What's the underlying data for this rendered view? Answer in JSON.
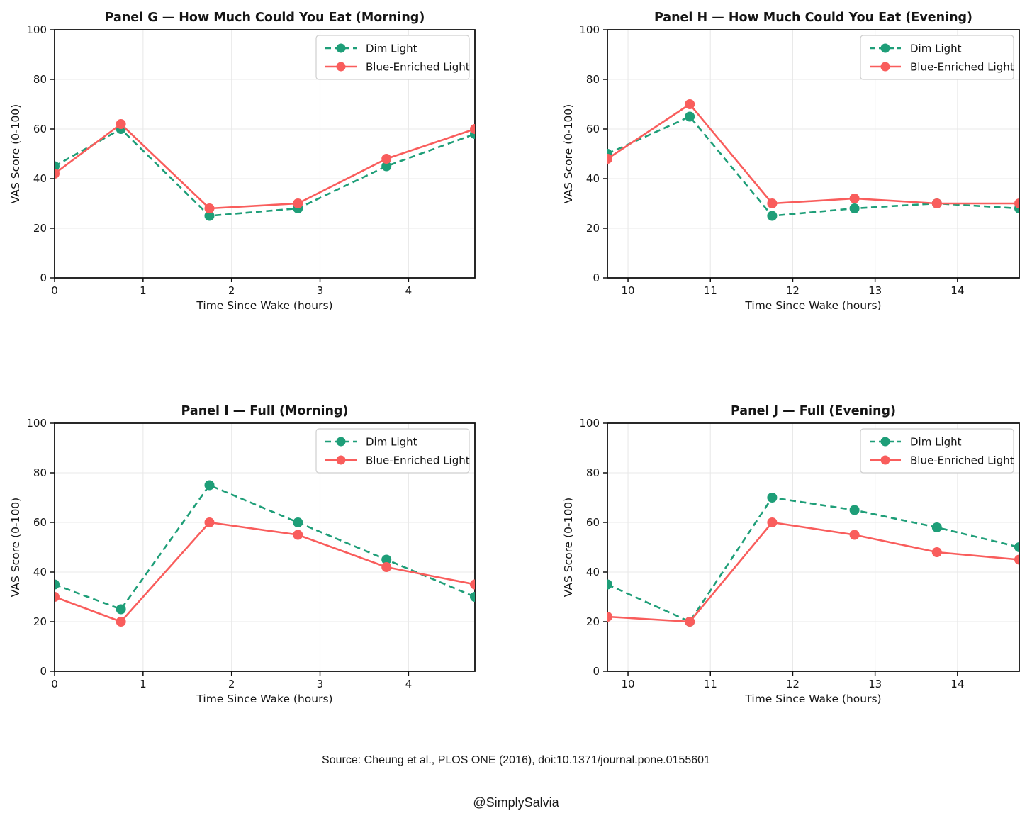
{
  "figure": {
    "source": "Source: Cheung et al., PLOS ONE (2016), doi:10.1371/journal.pone.0155601",
    "handle": "@SimplySalvia"
  },
  "style": {
    "dim_color": "#1e9e78",
    "blue_color": "#f95d5c",
    "grid_color": "#e9e9e9",
    "spine_color": "#111111",
    "text_color": "#151515",
    "legend_border": "#cfcfcf",
    "background": "#ffffff"
  },
  "chart_data": [
    {
      "id": "panel-g",
      "type": "line",
      "title": "Panel G — How Much Could You Eat (Morning)",
      "xlabel": "Time Since Wake (hours)",
      "ylabel": "VAS Score (0-100)",
      "xlim": [
        0,
        4.75
      ],
      "ylim": [
        0,
        100
      ],
      "xticks": [
        0,
        1,
        2,
        3,
        4
      ],
      "yticks": [
        0,
        20,
        40,
        60,
        80,
        100
      ],
      "grid": true,
      "legend_position": "upper right",
      "x": [
        0,
        0.75,
        1.75,
        2.75,
        3.75,
        4.75
      ],
      "series": [
        {
          "name": "Dim Light",
          "line": "dashed",
          "color": "#1e9e78",
          "values": [
            45,
            60,
            25,
            28,
            45,
            58
          ]
        },
        {
          "name": "Blue-Enriched Light",
          "line": "solid",
          "color": "#f95d5c",
          "values": [
            42,
            62,
            28,
            30,
            48,
            60
          ]
        }
      ]
    },
    {
      "id": "panel-h",
      "type": "line",
      "title": "Panel H — How Much Could You Eat (Evening)",
      "xlabel": "Time Since Wake (hours)",
      "ylabel": "VAS Score (0-100)",
      "xlim": [
        9.75,
        14.75
      ],
      "ylim": [
        0,
        100
      ],
      "xticks": [
        10,
        11,
        12,
        13,
        14
      ],
      "yticks": [
        0,
        20,
        40,
        60,
        80,
        100
      ],
      "grid": true,
      "legend_position": "upper right",
      "x": [
        9.75,
        10.75,
        11.75,
        12.75,
        13.75,
        14.75
      ],
      "series": [
        {
          "name": "Dim Light",
          "line": "dashed",
          "color": "#1e9e78",
          "values": [
            50,
            65,
            25,
            28,
            30,
            28
          ]
        },
        {
          "name": "Blue-Enriched Light",
          "line": "solid",
          "color": "#f95d5c",
          "values": [
            48,
            70,
            30,
            32,
            30,
            30
          ]
        }
      ]
    },
    {
      "id": "panel-i",
      "type": "line",
      "title": "Panel I — Full (Morning)",
      "xlabel": "Time Since Wake (hours)",
      "ylabel": "VAS Score (0-100)",
      "xlim": [
        0,
        4.75
      ],
      "ylim": [
        0,
        100
      ],
      "xticks": [
        0,
        1,
        2,
        3,
        4
      ],
      "yticks": [
        0,
        20,
        40,
        60,
        80,
        100
      ],
      "grid": true,
      "legend_position": "upper right",
      "x": [
        0,
        0.75,
        1.75,
        2.75,
        3.75,
        4.75
      ],
      "series": [
        {
          "name": "Dim Light",
          "line": "dashed",
          "color": "#1e9e78",
          "values": [
            35,
            25,
            75,
            60,
            45,
            30
          ]
        },
        {
          "name": "Blue-Enriched Light",
          "line": "solid",
          "color": "#f95d5c",
          "values": [
            30,
            20,
            60,
            55,
            42,
            35
          ]
        }
      ]
    },
    {
      "id": "panel-j",
      "type": "line",
      "title": "Panel J — Full (Evening)",
      "xlabel": "Time Since Wake (hours)",
      "ylabel": "VAS Score (0-100)",
      "xlim": [
        9.75,
        14.75
      ],
      "ylim": [
        0,
        100
      ],
      "xticks": [
        10,
        11,
        12,
        13,
        14
      ],
      "yticks": [
        0,
        20,
        40,
        60,
        80,
        100
      ],
      "grid": true,
      "legend_position": "upper right",
      "x": [
        9.75,
        10.75,
        11.75,
        12.75,
        13.75,
        14.75
      ],
      "series": [
        {
          "name": "Dim Light",
          "line": "dashed",
          "color": "#1e9e78",
          "values": [
            35,
            20,
            70,
            65,
            58,
            50
          ]
        },
        {
          "name": "Blue-Enriched Light",
          "line": "solid",
          "color": "#f95d5c",
          "values": [
            22,
            20,
            60,
            55,
            48,
            45
          ]
        }
      ]
    }
  ]
}
